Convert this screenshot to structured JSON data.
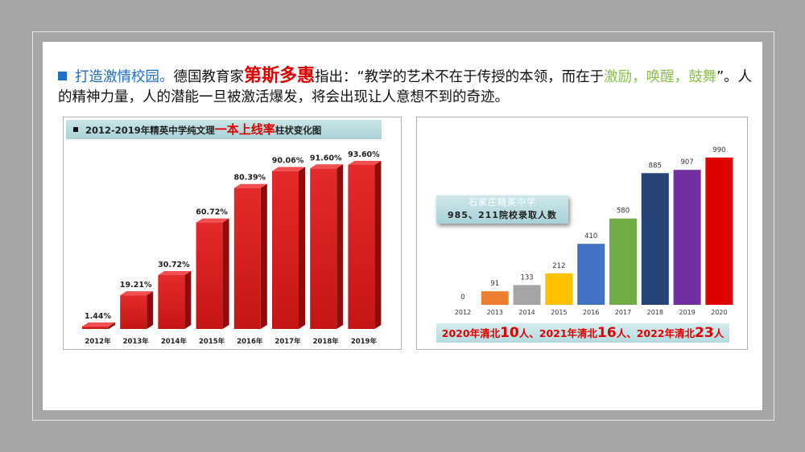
{
  "intro": {
    "lead": "打造激情校园。",
    "text1": "德国教育家",
    "name": "第斯多惠",
    "text2": "指出：“教学的艺术不在于传授的本领，而在于",
    "highlight": "激励，唤醒，鼓舞",
    "text3": "”。人的精神力量，人的潜能一旦被激活爆发，将会出现让人意想不到的奇迹。"
  },
  "colors": {
    "blue": "#1f6fc5",
    "red": "#e00000",
    "green": "#8bc34a"
  },
  "left_chart": {
    "title_prefix": "2012-2019年精英中学纯文理",
    "title_highlight": "一本上线率",
    "title_suffix": "柱状变化图"
  },
  "right_chart": {
    "box_line1": "石家庄精英中学",
    "box_line2": "985、211院校录取人数",
    "footer": {
      "p1": "2020年清北",
      "n1": "10",
      "p2": "人、2021年清北",
      "n2": "16",
      "p3": "人、2022年清北",
      "n3": "23",
      "p4": "人"
    }
  },
  "chart_data": [
    {
      "type": "bar",
      "title": "2012-2019年精英中学纯文理一本上线率柱状变化图",
      "categories": [
        "2012年",
        "2013年",
        "2014年",
        "2015年",
        "2016年",
        "2017年",
        "2018年",
        "2019年"
      ],
      "values": [
        1.44,
        19.21,
        30.72,
        60.72,
        80.39,
        90.06,
        91.6,
        93.6
      ],
      "value_labels": [
        "1.44%",
        "19.21%",
        "30.72%",
        "60.72%",
        "80.39%",
        "90.06%",
        "91.60%",
        "93.60%"
      ],
      "xlabel": "",
      "ylabel": "",
      "ylim": [
        0,
        100
      ],
      "grid": false,
      "colors": [
        "#d81e1e"
      ]
    },
    {
      "type": "bar",
      "title": "石家庄精英中学 985、211院校录取人数",
      "categories": [
        "2012",
        "2013",
        "2014",
        "2015",
        "2016",
        "2017",
        "2018",
        "2019",
        "2020"
      ],
      "values": [
        0,
        91,
        133,
        212,
        410,
        580,
        885,
        907,
        990
      ],
      "xlabel": "",
      "ylabel": "",
      "ylim": [
        0,
        1000
      ],
      "grid": false,
      "colors": [
        "#ed7d31",
        "#ed7d31",
        "#a5a5a5",
        "#ffc000",
        "#4472c4",
        "#70ad47",
        "#264478",
        "#7030a0",
        "#e00000"
      ]
    }
  ]
}
